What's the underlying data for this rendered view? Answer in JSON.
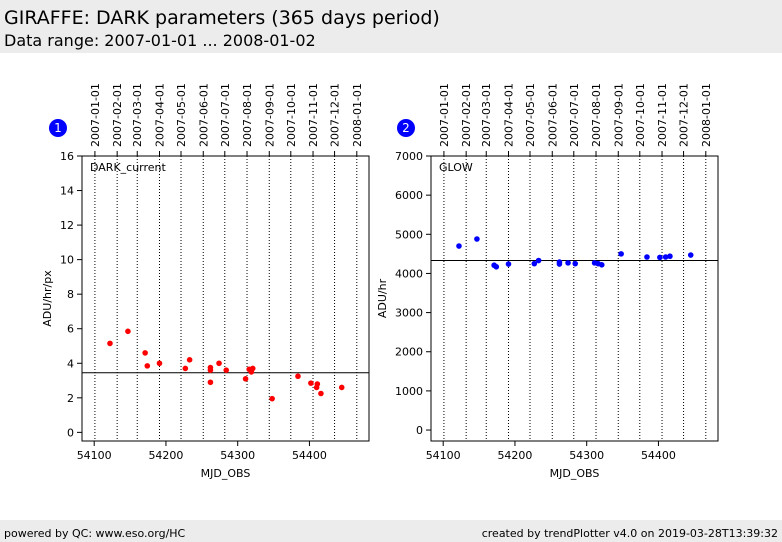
{
  "header": {
    "title": "GIRAFFE: DARK parameters (365 days period)",
    "subtitle": "Data range: 2007-01-01 ... 2008-01-02"
  },
  "footer": {
    "left": "powered by QC: www.eso.org/HC",
    "right": "created by trendPlotter v4.0 on 2019-03-28T13:39:32"
  },
  "chart_data": [
    {
      "type": "scatter",
      "badge": "1",
      "title": "DARK_current",
      "xlabel": "MJD_OBS",
      "ylabel": "ADU/hr/px",
      "xlim": [
        54083,
        54483
      ],
      "ylim": [
        -0.5,
        16
      ],
      "xticks": [
        54100,
        54200,
        54300,
        54400
      ],
      "yticks": [
        0,
        2,
        4,
        6,
        8,
        10,
        12,
        14,
        16
      ],
      "date_ticks": [
        {
          "label": "2007-01-01",
          "mjd": 54101
        },
        {
          "label": "2007-02-01",
          "mjd": 54132
        },
        {
          "label": "2007-03-01",
          "mjd": 54160
        },
        {
          "label": "2007-04-01",
          "mjd": 54191
        },
        {
          "label": "2007-05-01",
          "mjd": 54221
        },
        {
          "label": "2007-06-01",
          "mjd": 54252
        },
        {
          "label": "2007-07-01",
          "mjd": 54282
        },
        {
          "label": "2007-08-01",
          "mjd": 54313
        },
        {
          "label": "2007-09-01",
          "mjd": 54344
        },
        {
          "label": "2007-10-01",
          "mjd": 54374
        },
        {
          "label": "2007-11-01",
          "mjd": 54405
        },
        {
          "label": "2007-12-01",
          "mjd": 54435
        },
        {
          "label": "2008-01-01",
          "mjd": 54466
        }
      ],
      "reference_line": 3.45,
      "color": "#ff0000",
      "points": [
        {
          "x": 54122,
          "y": 5.15
        },
        {
          "x": 54147,
          "y": 5.85
        },
        {
          "x": 54171,
          "y": 4.6
        },
        {
          "x": 54174,
          "y": 3.85
        },
        {
          "x": 54191,
          "y": 4.0
        },
        {
          "x": 54227,
          "y": 3.7
        },
        {
          "x": 54233,
          "y": 4.2
        },
        {
          "x": 54262,
          "y": 3.6
        },
        {
          "x": 54262,
          "y": 3.75
        },
        {
          "x": 54262,
          "y": 2.9
        },
        {
          "x": 54274,
          "y": 4.0
        },
        {
          "x": 54284,
          "y": 3.6
        },
        {
          "x": 54311,
          "y": 3.1
        },
        {
          "x": 54316,
          "y": 3.65
        },
        {
          "x": 54319,
          "y": 3.5
        },
        {
          "x": 54321,
          "y": 3.7
        },
        {
          "x": 54348,
          "y": 1.95
        },
        {
          "x": 54384,
          "y": 3.25
        },
        {
          "x": 54402,
          "y": 2.85
        },
        {
          "x": 54410,
          "y": 2.6
        },
        {
          "x": 54411,
          "y": 2.8
        },
        {
          "x": 54416,
          "y": 2.25
        },
        {
          "x": 54445,
          "y": 2.6
        }
      ]
    },
    {
      "type": "scatter",
      "badge": "2",
      "title": "GLOW",
      "xlabel": "MJD_OBS",
      "ylabel": "ADU/hr",
      "xlim": [
        54083,
        54483
      ],
      "ylim": [
        -280,
        7000
      ],
      "xticks": [
        54100,
        54200,
        54300,
        54400
      ],
      "yticks": [
        0,
        1000,
        2000,
        3000,
        4000,
        5000,
        6000,
        7000
      ],
      "date_ticks": [
        {
          "label": "2007-01-01",
          "mjd": 54101
        },
        {
          "label": "2007-02-01",
          "mjd": 54132
        },
        {
          "label": "2007-03-01",
          "mjd": 54160
        },
        {
          "label": "2007-04-01",
          "mjd": 54191
        },
        {
          "label": "2007-05-01",
          "mjd": 54221
        },
        {
          "label": "2007-06-01",
          "mjd": 54252
        },
        {
          "label": "2007-07-01",
          "mjd": 54282
        },
        {
          "label": "2007-08-01",
          "mjd": 54313
        },
        {
          "label": "2007-09-01",
          "mjd": 54344
        },
        {
          "label": "2007-10-01",
          "mjd": 54374
        },
        {
          "label": "2007-11-01",
          "mjd": 54405
        },
        {
          "label": "2007-12-01",
          "mjd": 54435
        },
        {
          "label": "2008-01-01",
          "mjd": 54466
        }
      ],
      "reference_line": 4330,
      "color": "#0000ff",
      "points": [
        {
          "x": 54122,
          "y": 4700
        },
        {
          "x": 54147,
          "y": 4880
        },
        {
          "x": 54171,
          "y": 4210
        },
        {
          "x": 54174,
          "y": 4170
        },
        {
          "x": 54191,
          "y": 4240
        },
        {
          "x": 54227,
          "y": 4250
        },
        {
          "x": 54233,
          "y": 4330
        },
        {
          "x": 54262,
          "y": 4290
        },
        {
          "x": 54262,
          "y": 4240
        },
        {
          "x": 54274,
          "y": 4270
        },
        {
          "x": 54284,
          "y": 4250
        },
        {
          "x": 54311,
          "y": 4270
        },
        {
          "x": 54316,
          "y": 4250
        },
        {
          "x": 54321,
          "y": 4220
        },
        {
          "x": 54348,
          "y": 4500
        },
        {
          "x": 54384,
          "y": 4420
        },
        {
          "x": 54402,
          "y": 4410
        },
        {
          "x": 54410,
          "y": 4420
        },
        {
          "x": 54416,
          "y": 4440
        },
        {
          "x": 54445,
          "y": 4470
        }
      ]
    }
  ]
}
